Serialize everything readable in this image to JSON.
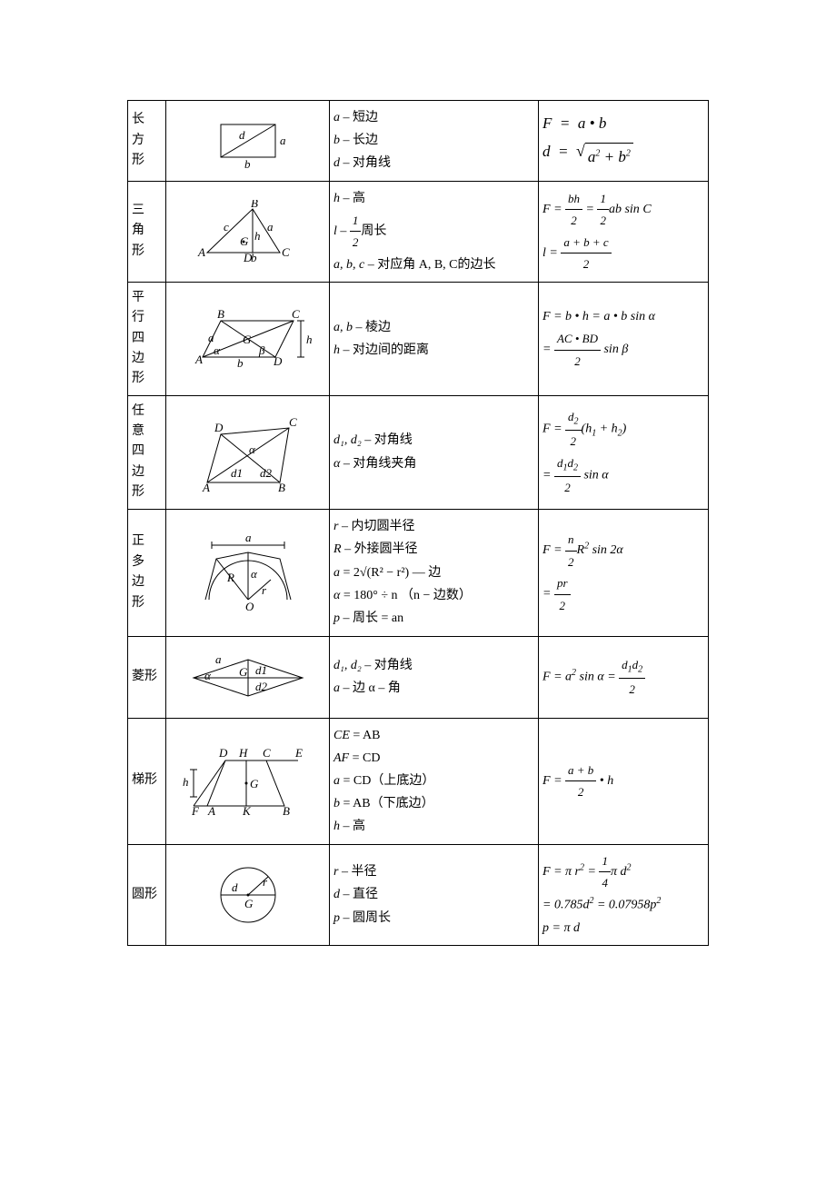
{
  "rows": [
    {
      "name": "长方形",
      "symbols": [
        {
          "type": "line",
          "var": "a",
          "text": " – 短边"
        },
        {
          "type": "line",
          "var": "b",
          "text": " – 长边"
        },
        {
          "type": "line",
          "var": "d",
          "text": " – 对角线"
        }
      ],
      "formulas": [
        "F = a • b",
        "d = √(a² + b²)"
      ],
      "diagram": "rectangle"
    },
    {
      "name": "三角形",
      "symbols": [
        {
          "type": "line",
          "var": "h",
          "text": " – 高"
        },
        {
          "type": "fracline",
          "var": "l",
          "n": "1",
          "d": "2",
          "text": "周长"
        },
        {
          "type": "line",
          "var": "a, b, c",
          "text": " – 对应角 A, B, C的边长"
        }
      ],
      "formulas": [
        "F = bh/2 = (1/2) ab sin C",
        "l = (a + b + c)/2"
      ],
      "diagram": "triangle"
    },
    {
      "name": "平行四边形",
      "symbols": [
        {
          "type": "line",
          "var": "a, b",
          "text": " – 棱边"
        },
        {
          "type": "line",
          "var": "h",
          "text": " – 对边间的距离"
        }
      ],
      "formulas": [
        "F = b • h = a • b sin α",
        "= (AC • BD)/2 · sin β"
      ],
      "diagram": "parallelogram"
    },
    {
      "name": "任意四边形",
      "symbols": [
        {
          "type": "line",
          "var": "d₁, d₂",
          "text": " – 对角线"
        },
        {
          "type": "line",
          "var": "α",
          "text": " – 对角线夹角"
        }
      ],
      "formulas": [
        "F = (d₂/2)(h₁ + h₂)",
        "= (d₁d₂/2) sin α"
      ],
      "diagram": "quad"
    },
    {
      "name": "正多边形",
      "symbols": [
        {
          "type": "line",
          "var": "r",
          "text": " – 内切圆半径"
        },
        {
          "type": "line",
          "var": "R",
          "text": " – 外接圆半径"
        },
        {
          "type": "line",
          "var": "a",
          "text": " = 2√(R² − r²) — 边"
        },
        {
          "type": "line",
          "var": "α",
          "text": " = 180° ÷ n （n − 边数）"
        },
        {
          "type": "line",
          "var": "p",
          "text": " – 周长 = an"
        }
      ],
      "formulas": [
        "F = (n/2) R² sin 2α",
        "= pr/2"
      ],
      "diagram": "polygon"
    },
    {
      "name": "菱形",
      "symbols": [
        {
          "type": "line",
          "var": "d₁, d₂",
          "text": " – 对角线"
        },
        {
          "type": "line",
          "var": "a",
          "text": " – 边  α – 角"
        }
      ],
      "formulas": [
        "F = a² sin α = (d₁d₂)/2"
      ],
      "diagram": "rhombus"
    },
    {
      "name": "梯形",
      "symbols": [
        {
          "type": "line",
          "var": "CE",
          "text": " = AB"
        },
        {
          "type": "line",
          "var": "AF",
          "text": " = CD"
        },
        {
          "type": "line",
          "var": "a",
          "text": " = CD（上底边）"
        },
        {
          "type": "line",
          "var": "b",
          "text": " = AB（下底边）"
        },
        {
          "type": "line",
          "var": "h",
          "text": " – 高"
        }
      ],
      "formulas": [
        "F = (a + b)/2 • h"
      ],
      "diagram": "trapezoid"
    },
    {
      "name": "圆形",
      "symbols": [
        {
          "type": "line",
          "var": "r",
          "text": " – 半径"
        },
        {
          "type": "line",
          "var": "d",
          "text": " – 直径"
        },
        {
          "type": "line",
          "var": "p",
          "text": " – 圆周长"
        }
      ],
      "formulas": [
        "F = πr² = (1/4)πd²",
        "= 0.785d² = 0.07958p²",
        "p = πd"
      ],
      "diagram": "circle"
    }
  ],
  "colors": {
    "border": "#000000",
    "bg": "#ffffff",
    "text": "#000000"
  }
}
